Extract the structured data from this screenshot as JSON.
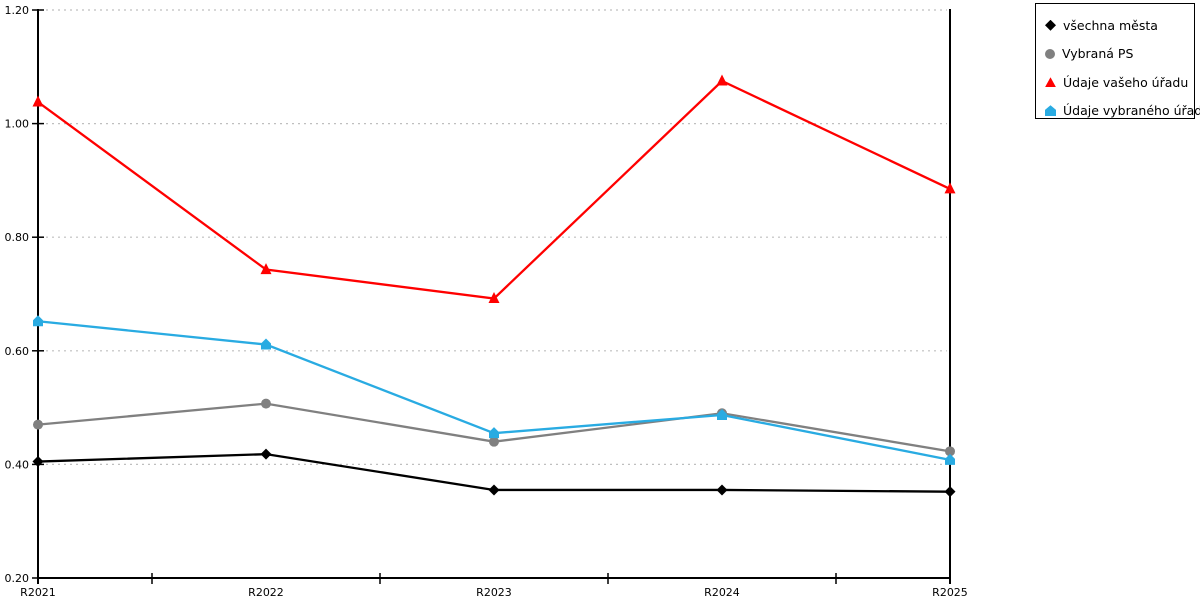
{
  "chart_data": {
    "type": "line",
    "title": "",
    "xlabel": "",
    "ylabel": "",
    "categories": [
      "R2021",
      "R2022",
      "R2023",
      "R2024",
      "R2025"
    ],
    "series": [
      {
        "name": "všechna města",
        "marker": "diamond",
        "color": "#000000",
        "values": [
          0.405,
          0.418,
          0.355,
          0.355,
          0.352
        ]
      },
      {
        "name": "Vybraná PS",
        "marker": "circle",
        "color": "#808080",
        "values": [
          0.47,
          0.507,
          0.44,
          0.49,
          0.423
        ]
      },
      {
        "name": "Údaje vašeho úřadu",
        "marker": "triangle",
        "color": "#ff0000",
        "values": [
          1.038,
          0.743,
          0.692,
          1.075,
          0.885
        ]
      },
      {
        "name": "Údaje vybraného úřadu",
        "marker": "pentagon",
        "color": "#29abe2",
        "values": [
          0.652,
          0.611,
          0.455,
          0.487,
          0.408
        ]
      }
    ],
    "ylim": [
      0.2,
      1.2
    ],
    "ytick_step": 0.2,
    "ytick_labels": [
      "0.20",
      "0.40",
      "0.60",
      "0.80",
      "1.00",
      "1.20"
    ],
    "grid": "horizontal-dotted",
    "legend_position": "top-right"
  },
  "colors": {
    "background": "#ffffff",
    "axis": "#000000",
    "grid": "#bfbfbf",
    "text": "#000000"
  }
}
